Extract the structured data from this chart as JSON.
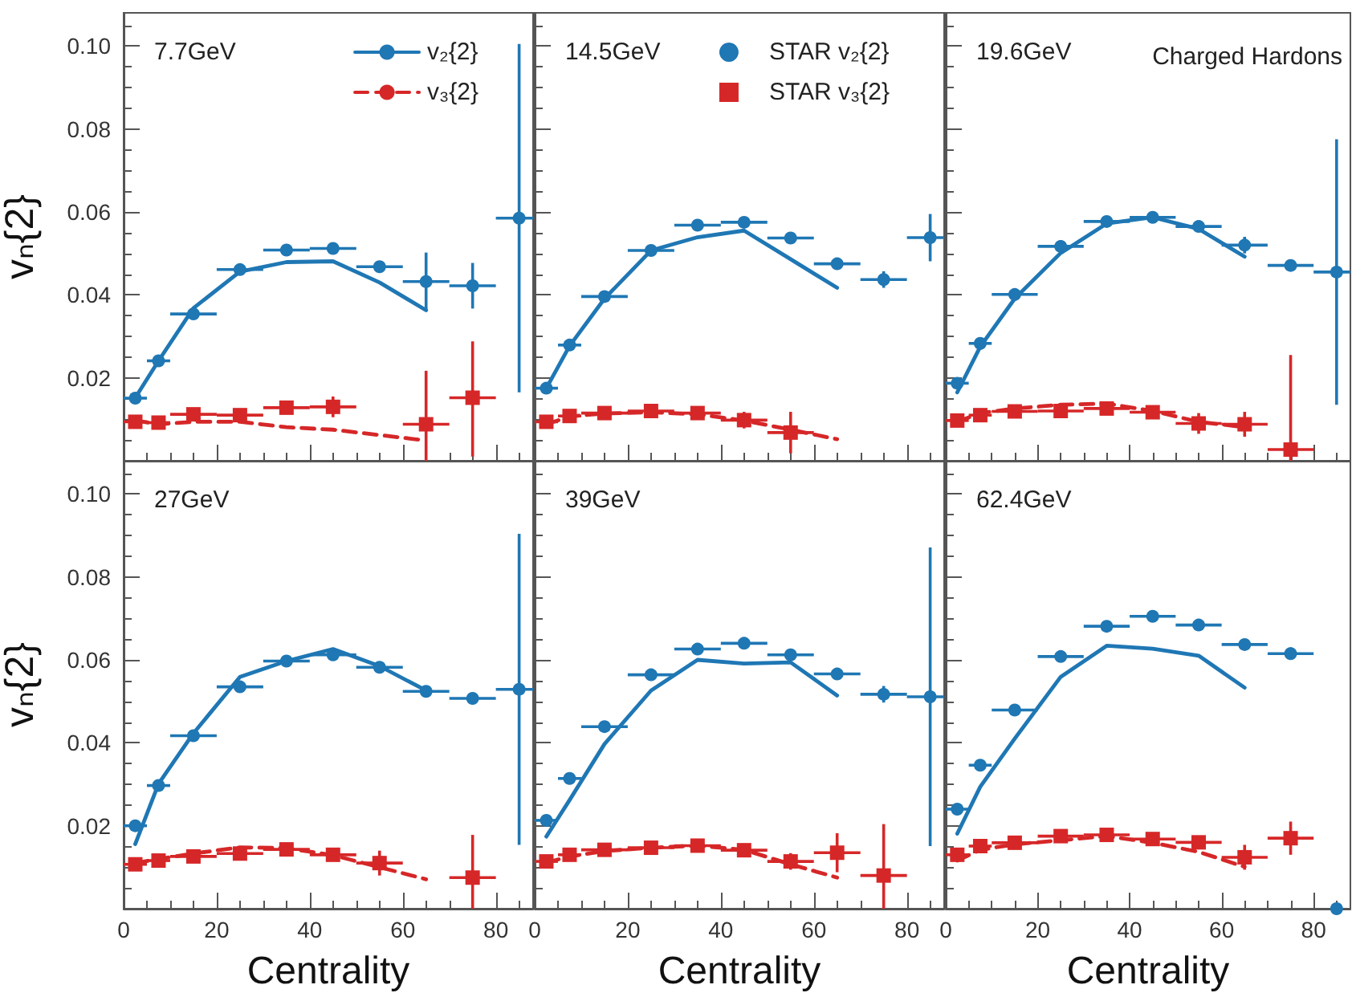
{
  "chart_data": [
    {
      "type": "scatter",
      "title": "7.7GeV",
      "ylabel": "vₙ{2}",
      "xlim": [
        0,
        88
      ],
      "xticks": [
        0,
        20,
        40,
        60,
        80
      ],
      "ylim": [
        0,
        0.108
      ],
      "yticks": [
        {
          "value": 0.02,
          "label": "0.02"
        },
        {
          "value": 0.04,
          "label": "0.04"
        },
        {
          "value": 0.06,
          "label": "0.06"
        },
        {
          "value": 0.08,
          "label": "0.08"
        },
        {
          "value": 0.1,
          "label": "0.10"
        }
      ],
      "tick_labels": "y",
      "legend": "top right",
      "series": [
        {
          "name": "v₂{2}",
          "type": "line",
          "marker": "none",
          "line_style": "solid",
          "color": "#1f77b4",
          "x": [
            2.5,
            7.5,
            15,
            25,
            35,
            45,
            55,
            65
          ],
          "values": [
            0.0152,
            0.0241,
            0.0368,
            0.0456,
            0.0479,
            0.0481,
            0.043,
            0.0363
          ]
        },
        {
          "name": "v₃{2}",
          "type": "line",
          "marker": "none",
          "line_style": "dashed",
          "color": "#d62728",
          "x": [
            2.5,
            7.5,
            15,
            25,
            35,
            45,
            55,
            65
          ],
          "values": [
            0.0097,
            0.0088,
            0.0094,
            0.0094,
            0.0081,
            0.0075,
            0.0062,
            0.0049
          ]
        },
        {
          "marker": "circle",
          "color": "#1f77b4",
          "x": [
            2.5,
            7.5,
            15,
            25,
            35,
            45,
            55,
            65,
            75,
            85
          ],
          "values": [
            0.0151,
            0.0241,
            0.0354,
            0.0461,
            0.0508,
            0.0512,
            0.0468,
            0.0432,
            0.0422,
            0.0585
          ],
          "errors": [
            null,
            null,
            null,
            null,
            null,
            null,
            null,
            0.007,
            0.0055,
            0.042
          ],
          "xerrors": [
            2.5,
            2.5,
            5,
            5,
            5,
            5,
            5,
            5,
            5,
            [
              80,
              88
            ]
          ]
        },
        {
          "marker": "square",
          "color": "#d62728",
          "x": [
            2.5,
            7.5,
            15,
            25,
            35,
            45,
            65,
            75
          ],
          "values": [
            0.0094,
            0.0092,
            0.0112,
            0.011,
            0.0128,
            0.013,
            0.0088,
            0.0152
          ],
          "errors": [
            null,
            null,
            null,
            null,
            null,
            0.0025,
            [
              0,
              0.0217
            ],
            [
              0.001,
              0.0288
            ]
          ],
          "xerrors": [
            2.5,
            2.5,
            5,
            5,
            5,
            5,
            5,
            5
          ]
        }
      ]
    },
    {
      "type": "scatter",
      "title": "14.5GeV",
      "xlim": [
        0,
        88
      ],
      "xticks": [
        0,
        20,
        40,
        60,
        80
      ],
      "ylim": [
        0,
        0.108
      ],
      "yticks": [
        0.02,
        0.04,
        0.06,
        0.08,
        0.1
      ],
      "tick_labels": false,
      "legend": "top right",
      "series": [
        {
          "type": "line",
          "marker": "none",
          "line_style": "solid",
          "color": "#1f77b4",
          "x": [
            2.5,
            7.5,
            15,
            25,
            35,
            45,
            55,
            65
          ],
          "values": [
            0.0175,
            0.0277,
            0.0391,
            0.0507,
            0.0539,
            0.0555,
            0.0486,
            0.0417
          ]
        },
        {
          "type": "line",
          "marker": "none",
          "line_style": "dashed",
          "color": "#d62728",
          "x": [
            2.5,
            7.5,
            15,
            25,
            35,
            45,
            55,
            65
          ],
          "values": [
            0.0088,
            0.0107,
            0.0114,
            0.0117,
            0.0112,
            0.0097,
            0.0075,
            0.0052
          ]
        },
        {
          "name": "STAR v₂{2}",
          "marker": "circle",
          "color": "#1f77b4",
          "x": [
            2.5,
            7.5,
            15,
            25,
            35,
            45,
            55,
            65,
            75,
            85
          ],
          "values": [
            0.0175,
            0.0279,
            0.0396,
            0.0507,
            0.0568,
            0.0575,
            0.0537,
            0.0475,
            0.0437,
            0.0538
          ],
          "errors": [
            null,
            null,
            null,
            null,
            null,
            null,
            null,
            null,
            0.002,
            0.0057
          ],
          "xerrors": [
            2.5,
            2.5,
            5,
            5,
            5,
            5,
            5,
            5,
            5,
            [
              80,
              88
            ]
          ]
        },
        {
          "name": "STAR v₃{2}",
          "marker": "square",
          "color": "#d62728",
          "x": [
            2.5,
            7.5,
            15,
            25,
            35,
            45,
            55
          ],
          "values": [
            0.0094,
            0.0108,
            0.0115,
            0.012,
            0.0115,
            0.0098,
            0.0068
          ],
          "errors": [
            null,
            null,
            null,
            null,
            null,
            0.002,
            0.005
          ],
          "xerrors": [
            2.5,
            2.5,
            5,
            5,
            5,
            5,
            5
          ]
        }
      ]
    },
    {
      "type": "scatter",
      "title": "19.6GeV",
      "annotations": [
        "Charged Hardons"
      ],
      "xlim": [
        0,
        88
      ],
      "xticks": [
        0,
        20,
        40,
        60,
        80
      ],
      "ylim": [
        0,
        0.108
      ],
      "yticks": [
        0.02,
        0.04,
        0.06,
        0.08,
        0.1
      ],
      "tick_labels": false,
      "series": [
        {
          "type": "line",
          "marker": "none",
          "line_style": "solid",
          "color": "#1f77b4",
          "x": [
            2.5,
            7.5,
            15,
            25,
            35,
            45,
            55,
            65
          ],
          "values": [
            0.0165,
            0.0275,
            0.0391,
            0.0501,
            0.0572,
            0.0587,
            0.0559,
            0.0492
          ]
        },
        {
          "type": "line",
          "marker": "none",
          "line_style": "dashed",
          "color": "#d62728",
          "x": [
            2.5,
            7.5,
            15,
            25,
            35,
            45,
            55,
            65
          ],
          "values": [
            0.0094,
            0.0115,
            0.0126,
            0.0135,
            0.0138,
            0.012,
            0.0094,
            0.0081
          ]
        },
        {
          "marker": "circle",
          "color": "#1f77b4",
          "x": [
            2.5,
            7.5,
            15,
            25,
            35,
            45,
            55,
            65,
            75,
            85
          ],
          "values": [
            0.0187,
            0.0283,
            0.0401,
            0.0517,
            0.0577,
            0.0587,
            0.0565,
            0.052,
            0.0471,
            0.0455
          ],
          "errors": [
            0.001,
            0.0015,
            0.0015,
            0.0015,
            0.0012,
            null,
            0.0012,
            0.002,
            null,
            0.032
          ],
          "xerrors": [
            2.5,
            2.5,
            5,
            5,
            5,
            5,
            5,
            5,
            5,
            [
              80,
              88
            ]
          ]
        },
        {
          "marker": "square",
          "color": "#d62728",
          "x": [
            2.5,
            7.5,
            15,
            25,
            35,
            45,
            55,
            65,
            75
          ],
          "values": [
            0.0097,
            0.011,
            0.0119,
            0.012,
            0.0126,
            0.0117,
            0.009,
            0.0088,
            0.0027
          ],
          "errors": [
            null,
            null,
            null,
            null,
            null,
            null,
            0.0025,
            0.003,
            [
              0,
              0.0255
            ]
          ],
          "xerrors": [
            2.5,
            2.5,
            5,
            5,
            5,
            5,
            5,
            5,
            5
          ]
        }
      ]
    },
    {
      "type": "scatter",
      "title": "27GeV",
      "xlabel": "Centrality",
      "ylabel": "vₙ{2}",
      "xlim": [
        0,
        88
      ],
      "xticks": [
        0,
        20,
        40,
        60,
        80
      ],
      "ylim": [
        0,
        0.108
      ],
      "yticks": [
        {
          "value": 0.02,
          "label": "0.02"
        },
        {
          "value": 0.04,
          "label": "0.04"
        },
        {
          "value": 0.06,
          "label": "0.06"
        },
        {
          "value": 0.08,
          "label": "0.08"
        },
        {
          "value": 0.1,
          "label": "0.10"
        }
      ],
      "series": [
        {
          "type": "line",
          "marker": "none",
          "line_style": "solid",
          "color": "#1f77b4",
          "x": [
            2.5,
            7.5,
            15,
            25,
            35,
            45,
            55,
            65
          ],
          "values": [
            0.0156,
            0.0301,
            0.0423,
            0.0559,
            0.0597,
            0.0626,
            0.0585,
            0.0526
          ]
        },
        {
          "type": "line",
          "marker": "none",
          "line_style": "dashed",
          "color": "#d62728",
          "x": [
            2.5,
            7.5,
            15,
            25,
            35,
            45,
            55,
            65
          ],
          "values": [
            0.011,
            0.012,
            0.0133,
            0.0148,
            0.0146,
            0.0129,
            0.01,
            0.0071
          ]
        },
        {
          "marker": "circle",
          "color": "#1f77b4",
          "x": [
            2.5,
            7.5,
            15,
            25,
            35,
            45,
            55,
            65,
            75,
            85
          ],
          "values": [
            0.02,
            0.0297,
            0.0417,
            0.0535,
            0.0597,
            0.0612,
            0.0582,
            0.0524,
            0.0507,
            0.0529
          ],
          "errors": [
            null,
            null,
            null,
            null,
            null,
            null,
            null,
            null,
            null,
            0.0375
          ],
          "xerrors": [
            2.5,
            2.5,
            5,
            5,
            5,
            5,
            5,
            5,
            5,
            [
              80,
              88
            ]
          ]
        },
        {
          "marker": "square",
          "color": "#d62728",
          "x": [
            2.5,
            7.5,
            15,
            25,
            35,
            45,
            55,
            75
          ],
          "values": [
            0.0107,
            0.0116,
            0.0126,
            0.0133,
            0.0143,
            0.013,
            0.011,
            0.0075
          ],
          "errors": [
            null,
            null,
            null,
            null,
            null,
            null,
            0.003,
            [
              0,
              0.0178
            ]
          ],
          "xerrors": [
            2.5,
            2.5,
            5,
            5,
            5,
            5,
            5,
            5
          ]
        }
      ]
    },
    {
      "type": "scatter",
      "title": "39GeV",
      "xlabel": "Centrality",
      "xlim": [
        0,
        88
      ],
      "xticks": [
        0,
        20,
        40,
        60,
        80
      ],
      "ylim": [
        0,
        0.108
      ],
      "yticks": [
        0.02,
        0.04,
        0.06,
        0.08,
        0.1
      ],
      "tick_labels": "x",
      "series": [
        {
          "type": "line",
          "marker": "none",
          "line_style": "solid",
          "color": "#1f77b4",
          "x": [
            2.5,
            7.5,
            15,
            25,
            35,
            45,
            55,
            65
          ],
          "values": [
            0.0174,
            0.0262,
            0.0397,
            0.0526,
            0.06,
            0.0591,
            0.0594,
            0.0514
          ]
        },
        {
          "type": "line",
          "marker": "none",
          "line_style": "dashed",
          "color": "#d62728",
          "x": [
            2.5,
            7.5,
            15,
            25,
            35,
            45,
            55,
            65
          ],
          "values": [
            0.0111,
            0.0126,
            0.0139,
            0.0147,
            0.0152,
            0.0142,
            0.0107,
            0.0075
          ]
        },
        {
          "marker": "circle",
          "color": "#1f77b4",
          "x": [
            2.5,
            7.5,
            15,
            25,
            35,
            45,
            55,
            65,
            75,
            85
          ],
          "values": [
            0.0213,
            0.0314,
            0.0439,
            0.0564,
            0.0626,
            0.064,
            0.0612,
            0.0566,
            0.0517,
            0.0511
          ],
          "errors": [
            null,
            null,
            null,
            null,
            null,
            null,
            null,
            null,
            0.002,
            0.036
          ],
          "xerrors": [
            2.5,
            2.5,
            5,
            5,
            5,
            5,
            5,
            5,
            5,
            [
              80,
              88
            ]
          ]
        },
        {
          "marker": "square",
          "color": "#d62728",
          "x": [
            2.5,
            7.5,
            15,
            25,
            35,
            45,
            55,
            65,
            75
          ],
          "values": [
            0.0114,
            0.013,
            0.0142,
            0.0147,
            0.0152,
            0.0141,
            0.0114,
            0.0135,
            0.008
          ],
          "errors": [
            null,
            null,
            null,
            null,
            null,
            null,
            0.002,
            0.0047,
            [
              0,
              0.0204
            ]
          ],
          "xerrors": [
            2.5,
            2.5,
            5,
            5,
            5,
            5,
            5,
            5,
            5
          ]
        }
      ]
    },
    {
      "type": "scatter",
      "title": "62.4GeV",
      "xlabel": "Centrality",
      "xlim": [
        0,
        88
      ],
      "xticks": [
        0,
        20,
        40,
        60,
        80
      ],
      "ylim": [
        0,
        0.108
      ],
      "yticks": [
        0.02,
        0.04,
        0.06,
        0.08,
        0.1
      ],
      "tick_labels": "x",
      "series": [
        {
          "type": "line",
          "marker": "none",
          "line_style": "solid",
          "color": "#1f77b4",
          "x": [
            2.5,
            7.5,
            15,
            25,
            35,
            45,
            55,
            65
          ],
          "values": [
            0.0181,
            0.0294,
            0.041,
            0.0559,
            0.0634,
            0.0627,
            0.061,
            0.0533
          ]
        },
        {
          "type": "line",
          "marker": "none",
          "line_style": "dashed",
          "color": "#d62728",
          "x": [
            2.5,
            7.5,
            15,
            25,
            35,
            45,
            55,
            65
          ],
          "values": [
            0.0116,
            0.0142,
            0.0155,
            0.0165,
            0.0175,
            0.0159,
            0.0137,
            0.0101
          ]
        },
        {
          "marker": "circle",
          "color": "#1f77b4",
          "x": [
            2.5,
            7.5,
            15,
            25,
            35,
            45,
            55,
            65,
            75,
            85
          ],
          "values": [
            0.024,
            0.0346,
            0.0479,
            0.0608,
            0.0681,
            0.0705,
            0.0684,
            0.0637,
            0.0615,
            0
          ],
          "errors": [
            null,
            null,
            null,
            null,
            null,
            null,
            null,
            null,
            0.0015,
            null
          ],
          "xerrors": [
            2.5,
            2.5,
            5,
            5,
            5,
            5,
            5,
            5,
            5,
            null
          ]
        },
        {
          "marker": "square",
          "color": "#d62728",
          "x": [
            2.5,
            7.5,
            15,
            25,
            35,
            45,
            55,
            65,
            75
          ],
          "values": [
            0.013,
            0.0151,
            0.0159,
            0.0175,
            0.0178,
            0.0168,
            0.016,
            0.0124,
            0.017
          ],
          "errors": [
            null,
            null,
            null,
            null,
            null,
            null,
            null,
            0.003,
            0.004
          ],
          "xerrors": [
            2.5,
            2.5,
            5,
            5,
            5,
            5,
            5,
            5,
            5
          ]
        }
      ]
    }
  ]
}
